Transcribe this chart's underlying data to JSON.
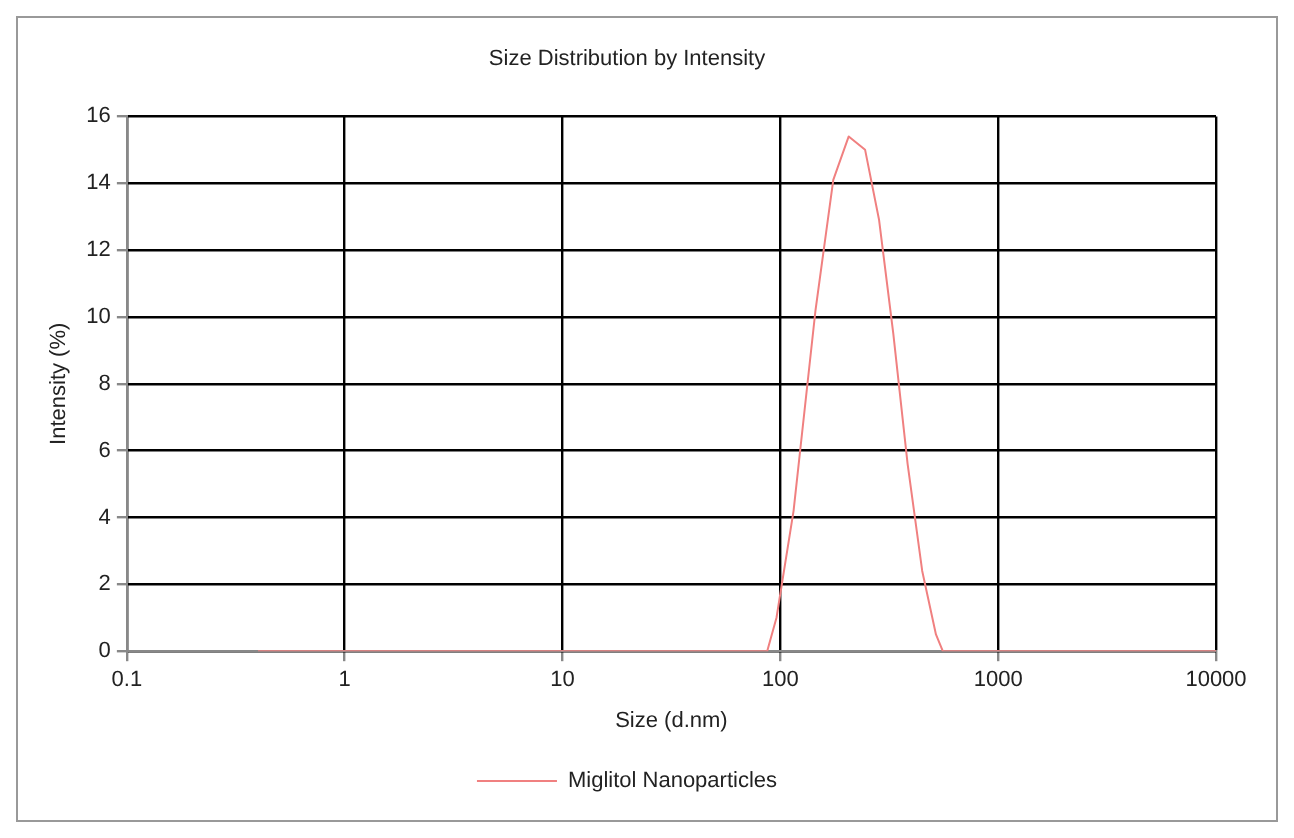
{
  "chart_data": {
    "type": "line",
    "title": "Size Distribution by Intensity",
    "xlabel": "Size (d.nm)",
    "ylabel": "Intensity (%)",
    "x": [
      0.4,
      87,
      96,
      115,
      145,
      175,
      206,
      245,
      284,
      330,
      384,
      448,
      518,
      557,
      10000
    ],
    "series": [
      {
        "name": "Miglitol Nanoparticles",
        "color": "#f08080",
        "values": [
          0,
          0,
          1.0,
          4.2,
          10.2,
          14.1,
          15.4,
          15.0,
          12.9,
          9.5,
          5.6,
          2.4,
          0.5,
          0,
          0
        ]
      }
    ],
    "log": "x",
    "xlim": [
      0.1,
      10000
    ],
    "xticks": [
      0.1,
      1,
      10,
      100,
      1000,
      10000
    ],
    "ylim": [
      0,
      16
    ],
    "yticks": [
      0,
      2,
      4,
      6,
      8,
      10,
      12,
      14,
      16
    ],
    "grid": true,
    "legend": "bottom",
    "marker": "none",
    "line_style": "solid"
  }
}
